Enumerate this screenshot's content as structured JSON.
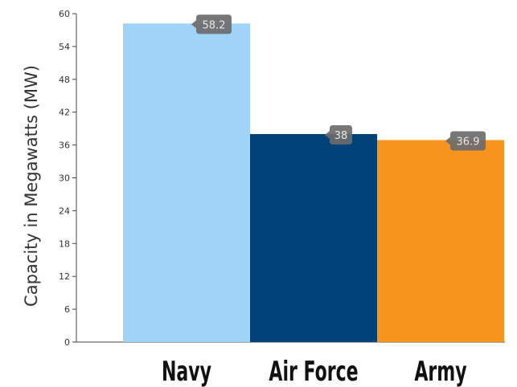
{
  "chart_data": {
    "type": "bar",
    "title": "",
    "xlabel": "",
    "ylabel": "Capacity in Megawatts (MW)",
    "categories": [
      "Navy",
      "Air Force",
      "Army"
    ],
    "values": [
      58.2,
      38,
      36.9
    ],
    "value_labels": [
      "58.2",
      "38",
      "36.9"
    ],
    "colors": [
      "#9fd3f7",
      "#00437a",
      "#f7941d"
    ],
    "label_bg": "#6b6b6b",
    "ylim": [
      0,
      60
    ],
    "yticks": [
      "0",
      "6",
      "12",
      "18",
      "24",
      "30",
      "36",
      "42",
      "48",
      "54",
      "60"
    ],
    "grid": false,
    "legend": "none"
  }
}
